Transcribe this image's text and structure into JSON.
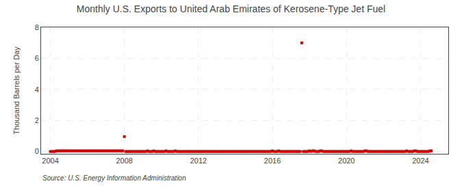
{
  "chart_data": {
    "type": "scatter",
    "title": "Monthly U.S. Exports to United Arab Emirates of Kerosene-Type Jet Fuel",
    "ylabel": "Thousand Barrels per Day",
    "annotations": [
      "Source: U.S. Energy Information Administration"
    ],
    "color": "#cc0000",
    "marker": "square",
    "grid": true,
    "xlim": [
      2003.5,
      2025.5
    ],
    "ylim": [
      -0.15,
      8
    ],
    "xticks": [
      2004,
      2008,
      2012,
      2016,
      2020,
      2024
    ],
    "yticks": [
      0,
      2,
      4,
      6,
      8
    ],
    "x": [
      2004.0,
      2004.083,
      2004.167,
      2004.25,
      2004.333,
      2004.417,
      2004.5,
      2004.583,
      2004.667,
      2004.75,
      2004.833,
      2004.917,
      2005.0,
      2005.083,
      2005.167,
      2005.25,
      2005.333,
      2005.417,
      2005.5,
      2005.583,
      2005.667,
      2005.75,
      2005.833,
      2005.917,
      2006.0,
      2006.083,
      2006.167,
      2006.25,
      2006.333,
      2006.417,
      2006.5,
      2006.583,
      2006.667,
      2006.75,
      2006.833,
      2006.917,
      2007.0,
      2007.083,
      2007.167,
      2007.25,
      2007.333,
      2007.417,
      2007.5,
      2007.583,
      2007.667,
      2007.75,
      2007.833,
      2007.917,
      2008.0,
      2008.083,
      2008.167,
      2008.25,
      2008.333,
      2008.417,
      2008.5,
      2008.583,
      2008.667,
      2008.75,
      2008.833,
      2008.917,
      2009.0,
      2009.083,
      2009.167,
      2009.25,
      2009.333,
      2009.417,
      2009.5,
      2009.583,
      2009.667,
      2009.75,
      2009.833,
      2009.917,
      2010.0,
      2010.083,
      2010.167,
      2010.25,
      2010.333,
      2010.417,
      2010.5,
      2010.583,
      2010.667,
      2010.75,
      2010.833,
      2010.917,
      2011.0,
      2011.083,
      2011.167,
      2011.25,
      2011.333,
      2011.417,
      2011.5,
      2011.583,
      2011.667,
      2011.75,
      2011.833,
      2011.917,
      2012.0,
      2012.083,
      2012.167,
      2012.25,
      2012.333,
      2012.417,
      2012.5,
      2012.583,
      2012.667,
      2012.75,
      2012.833,
      2012.917,
      2013.0,
      2013.083,
      2013.167,
      2013.25,
      2013.333,
      2013.417,
      2013.5,
      2013.583,
      2013.667,
      2013.75,
      2013.833,
      2013.917,
      2014.0,
      2014.083,
      2014.167,
      2014.25,
      2014.333,
      2014.417,
      2014.5,
      2014.583,
      2014.667,
      2014.75,
      2014.833,
      2014.917,
      2015.0,
      2015.083,
      2015.167,
      2015.25,
      2015.333,
      2015.417,
      2015.5,
      2015.583,
      2015.667,
      2015.75,
      2015.833,
      2015.917,
      2016.0,
      2016.083,
      2016.167,
      2016.25,
      2016.333,
      2016.417,
      2016.5,
      2016.583,
      2016.667,
      2016.75,
      2016.833,
      2016.917,
      2017.0,
      2017.083,
      2017.167,
      2017.25,
      2017.333,
      2017.417,
      2017.5,
      2017.583,
      2017.667,
      2017.75,
      2017.833,
      2017.917,
      2018.0,
      2018.083,
      2018.167,
      2018.25,
      2018.333,
      2018.417,
      2018.5,
      2018.583,
      2018.667,
      2018.75,
      2018.833,
      2018.917,
      2019.0,
      2019.083,
      2019.167,
      2019.25,
      2019.333,
      2019.417,
      2019.5,
      2019.583,
      2019.667,
      2019.75,
      2019.833,
      2019.917,
      2020.0,
      2020.083,
      2020.167,
      2020.25,
      2020.333,
      2020.417,
      2020.5,
      2020.583,
      2020.667,
      2020.75,
      2020.833,
      2020.917,
      2021.0,
      2021.083,
      2021.167,
      2021.25,
      2021.333,
      2021.417,
      2021.5,
      2021.583,
      2021.667,
      2021.75,
      2021.833,
      2021.917,
      2022.0,
      2022.083,
      2022.167,
      2022.25,
      2022.333,
      2022.417,
      2022.5,
      2022.583,
      2022.667,
      2022.75,
      2022.833,
      2022.917,
      2023.0,
      2023.083,
      2023.167,
      2023.25,
      2023.333,
      2023.417,
      2023.5,
      2023.583,
      2023.667,
      2023.75,
      2023.833,
      2023.917,
      2024.0,
      2024.083,
      2024.167,
      2024.25,
      2024.333,
      2024.417,
      2024.5,
      2024.583
    ],
    "values": [
      0.0,
      0.0,
      0.0,
      0.0,
      0.04,
      0.04,
      0.04,
      0.04,
      0.04,
      0.04,
      0.04,
      0.04,
      0.04,
      0.04,
      0.04,
      0.04,
      0.04,
      0.04,
      0.04,
      0.04,
      0.04,
      0.04,
      0.04,
      0.04,
      0.04,
      0.04,
      0.04,
      0.04,
      0.04,
      0.04,
      0.04,
      0.04,
      0.04,
      0.04,
      0.04,
      0.04,
      0.04,
      0.04,
      0.04,
      0.04,
      0.04,
      0.04,
      0.04,
      0.04,
      0.04,
      0.04,
      0.04,
      0.04,
      0.96,
      0.0,
      0.0,
      0.0,
      0.0,
      0.0,
      0.0,
      0.0,
      0.0,
      0.0,
      0.0,
      0.0,
      0.0,
      0.0,
      0.0,
      0.04,
      0.0,
      0.0,
      0.0,
      0.04,
      0.0,
      0.0,
      0.0,
      0.0,
      0.0,
      0.0,
      0.0,
      0.04,
      0.0,
      0.0,
      0.0,
      0.0,
      0.0,
      0.04,
      0.0,
      0.0,
      0.0,
      0.0,
      0.0,
      0.0,
      0.0,
      0.0,
      0.0,
      0.0,
      0.0,
      0.0,
      0.0,
      0.0,
      0.0,
      0.0,
      0.0,
      0.0,
      0.0,
      0.0,
      0.0,
      0.0,
      0.0,
      0.0,
      0.0,
      0.0,
      0.0,
      0.0,
      0.0,
      0.0,
      0.0,
      0.0,
      0.0,
      0.0,
      0.0,
      0.0,
      0.0,
      0.0,
      0.0,
      0.0,
      0.0,
      0.0,
      0.0,
      0.0,
      0.0,
      0.0,
      0.0,
      0.0,
      0.0,
      0.0,
      0.0,
      0.0,
      0.0,
      0.0,
      0.0,
      0.0,
      0.0,
      0.0,
      0.0,
      0.0,
      0.0,
      0.0,
      0.04,
      0.0,
      0.0,
      0.0,
      0.04,
      0.0,
      0.0,
      0.0,
      0.0,
      0.0,
      0.0,
      0.0,
      0.0,
      0.0,
      0.0,
      0.0,
      0.0,
      0.0,
      0.0,
      7.0,
      0.0,
      0.0,
      0.0,
      0.0,
      0.04,
      0.0,
      0.04,
      0.04,
      0.0,
      0.0,
      0.0,
      0.04,
      0.04,
      0.0,
      0.0,
      0.0,
      0.0,
      0.0,
      0.0,
      0.0,
      0.0,
      0.0,
      0.0,
      0.0,
      0.0,
      0.0,
      0.0,
      0.0,
      0.0,
      0.0,
      0.0,
      0.04,
      0.0,
      0.0,
      0.0,
      0.0,
      0.0,
      0.0,
      0.0,
      0.0,
      0.04,
      0.04,
      0.0,
      0.0,
      0.0,
      0.0,
      0.0,
      0.0,
      0.0,
      0.0,
      0.0,
      0.0,
      0.0,
      0.0,
      0.0,
      0.0,
      0.0,
      0.0,
      0.0,
      0.0,
      0.0,
      0.0,
      0.0,
      0.0,
      0.0,
      0.0,
      0.0,
      0.04,
      0.0,
      0.0,
      0.0,
      0.0,
      0.04,
      0.04,
      0.0,
      0.0,
      0.0,
      0.0,
      0.0,
      0.0,
      0.0,
      0.0,
      0.04,
      0.04
    ]
  }
}
